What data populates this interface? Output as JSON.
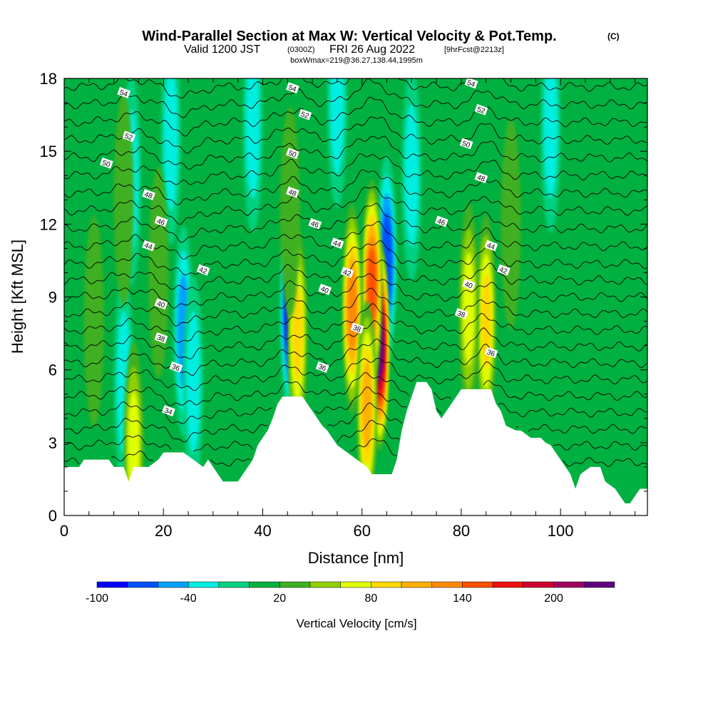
{
  "header": {
    "title_main": "Wind-Parallel Section at Max W: Vertical Velocity & Pot.Temp.",
    "title_mark": "(C)",
    "valid_prefix": "Valid 1200 JST",
    "valid_utc": "(0300Z)",
    "valid_date": "FRI 26 Aug 2022",
    "valid_fcst": "[9hrFcst@2213z]",
    "box_info": "boxWmax=219@36.27,138.44,1995m"
  },
  "colors": {
    "terrain": "#ffffff",
    "contour": "#000000",
    "frame": "#000000"
  },
  "chart_data": {
    "type": "heatmap",
    "xlabel": "Distance [nm]",
    "ylabel": "Height [Kft MSL]",
    "xlim": [
      0,
      117.5
    ],
    "ylim": [
      0,
      18
    ],
    "x_ticks": [
      0,
      20,
      40,
      60,
      80,
      100
    ],
    "y_ticks": [
      0,
      3,
      6,
      9,
      12,
      15,
      18
    ],
    "colorbar": {
      "title": "Vertical Velocity [cm/s]",
      "levels": [
        -100,
        -80,
        -60,
        -40,
        -20,
        0,
        20,
        40,
        60,
        80,
        100,
        120,
        140,
        160,
        180,
        200,
        220,
        240
      ],
      "labeled_ticks": [
        -100,
        -40,
        20,
        80,
        140,
        200
      ],
      "colors": [
        "#0000ff",
        "#0050ff",
        "#00a0ff",
        "#00eee0",
        "#00d080",
        "#00b040",
        "#40b020",
        "#90d000",
        "#e0ff00",
        "#ffd800",
        "#ffb000",
        "#ff8800",
        "#ff5000",
        "#ee1010",
        "#cc0030",
        "#a00060",
        "#600080"
      ]
    },
    "background_w": 10,
    "terrain": [
      [
        0,
        2.0
      ],
      [
        3,
        2.0
      ],
      [
        4,
        2.3
      ],
      [
        9,
        2.3
      ],
      [
        10,
        2.0
      ],
      [
        12,
        2.0
      ],
      [
        13,
        1.4
      ],
      [
        14,
        2.0
      ],
      [
        17,
        2.0
      ],
      [
        19,
        2.3
      ],
      [
        20,
        2.6
      ],
      [
        24,
        2.6
      ],
      [
        26,
        2.3
      ],
      [
        28,
        2.0
      ],
      [
        29,
        2.3
      ],
      [
        31,
        1.7
      ],
      [
        32,
        1.4
      ],
      [
        35,
        1.4
      ],
      [
        36,
        1.7
      ],
      [
        37,
        2.0
      ],
      [
        38,
        2.3
      ],
      [
        39,
        2.9
      ],
      [
        40,
        3.2
      ],
      [
        41,
        3.5
      ],
      [
        42,
        4.0
      ],
      [
        43,
        4.6
      ],
      [
        44,
        4.9
      ],
      [
        48,
        4.9
      ],
      [
        49,
        4.6
      ],
      [
        50,
        4.3
      ],
      [
        51,
        4.0
      ],
      [
        52,
        3.7
      ],
      [
        53,
        3.5
      ],
      [
        54,
        3.2
      ],
      [
        55,
        2.9
      ],
      [
        57,
        2.6
      ],
      [
        59,
        2.3
      ],
      [
        61,
        2.0
      ],
      [
        62,
        1.7
      ],
      [
        66,
        1.7
      ],
      [
        67,
        2.3
      ],
      [
        68,
        3.5
      ],
      [
        69,
        4.3
      ],
      [
        71,
        5.5
      ],
      [
        73,
        5.5
      ],
      [
        74,
        5.2
      ],
      [
        75,
        4.3
      ],
      [
        76,
        4.0
      ],
      [
        77,
        4.3
      ],
      [
        78,
        4.6
      ],
      [
        79,
        4.9
      ],
      [
        80,
        5.2
      ],
      [
        83,
        5.2
      ],
      [
        84,
        5.2
      ],
      [
        86,
        5.2
      ],
      [
        87,
        4.6
      ],
      [
        88,
        4.3
      ],
      [
        89,
        3.7
      ],
      [
        91,
        3.5
      ],
      [
        92,
        3.5
      ],
      [
        94,
        3.2
      ],
      [
        96,
        3.2
      ],
      [
        97,
        3.0
      ],
      [
        98,
        2.9
      ],
      [
        99,
        2.6
      ],
      [
        100,
        2.3
      ],
      [
        101,
        2.0
      ],
      [
        102,
        1.7
      ],
      [
        103,
        1.1
      ],
      [
        104,
        1.7
      ],
      [
        106,
        2.0
      ],
      [
        108,
        2.0
      ],
      [
        109,
        1.4
      ],
      [
        111,
        1.1
      ],
      [
        112,
        0.8
      ],
      [
        113,
        0.5
      ],
      [
        114,
        0.5
      ],
      [
        115,
        0.8
      ],
      [
        116,
        1.1
      ],
      [
        117.5,
        1.1
      ]
    ],
    "updrafts": [
      {
        "x": 63.5,
        "y": 7.0,
        "w": 220
      },
      {
        "x": 62.0,
        "y": 9.5,
        "w": 140
      },
      {
        "x": 58.0,
        "y": 8.5,
        "w": 120
      },
      {
        "x": 61.0,
        "y": 4.5,
        "w": 100
      },
      {
        "x": 47.0,
        "y": 7.5,
        "w": 80
      },
      {
        "x": 85.0,
        "y": 8.0,
        "w": 80
      },
      {
        "x": 81.5,
        "y": 8.5,
        "w": 60
      },
      {
        "x": 14.0,
        "y": 2.8,
        "w": 70
      },
      {
        "x": 19.0,
        "y": 10.0,
        "w": 30
      },
      {
        "x": 12.0,
        "y": 13.0,
        "w": 30
      },
      {
        "x": 45.5,
        "y": 12.5,
        "w": 30
      },
      {
        "x": 90.0,
        "y": 12.0,
        "w": 30
      },
      {
        "x": 6.0,
        "y": 8.0,
        "w": 30
      }
    ],
    "downdrafts": [
      {
        "x": 45.5,
        "y": 8.5,
        "w": -90
      },
      {
        "x": 65.0,
        "y": 10.5,
        "w": -60
      },
      {
        "x": 24.0,
        "y": 7.6,
        "w": -40
      },
      {
        "x": 13.5,
        "y": 13.8,
        "w": -30
      },
      {
        "x": 21.5,
        "y": 15.5,
        "w": -30
      },
      {
        "x": 38.0,
        "y": 16.0,
        "w": -30
      },
      {
        "x": 55.0,
        "y": 17.0,
        "w": -30
      },
      {
        "x": 70.0,
        "y": 14.0,
        "w": -30
      },
      {
        "x": 98.0,
        "y": 16.0,
        "w": -30
      },
      {
        "x": 26.0,
        "y": 5.5,
        "w": -30
      },
      {
        "x": 12.0,
        "y": 5.5,
        "w": -30
      }
    ],
    "pot_temp_contours": {
      "levels": [
        32,
        33,
        34,
        35,
        36,
        37,
        38,
        39,
        40,
        41,
        42,
        43,
        44,
        45,
        46,
        47,
        48,
        49,
        50,
        51,
        52,
        53,
        54,
        55,
        56
      ],
      "labeled": [
        {
          "v": "54",
          "x": 12,
          "y": 17.4
        },
        {
          "v": "52",
          "x": 13,
          "y": 15.6
        },
        {
          "v": "50",
          "x": 8.5,
          "y": 14.5
        },
        {
          "v": "48",
          "x": 17,
          "y": 13.2
        },
        {
          "v": "46",
          "x": 19.5,
          "y": 12.1
        },
        {
          "v": "44",
          "x": 17,
          "y": 11.1
        },
        {
          "v": "42",
          "x": 28,
          "y": 10.1
        },
        {
          "v": "40",
          "x": 19.5,
          "y": 8.7
        },
        {
          "v": "38",
          "x": 19.5,
          "y": 7.3
        },
        {
          "v": "36",
          "x": 22.5,
          "y": 6.1
        },
        {
          "v": "34",
          "x": 21,
          "y": 4.3
        },
        {
          "v": "54",
          "x": 46,
          "y": 17.6
        },
        {
          "v": "52",
          "x": 48.5,
          "y": 16.5
        },
        {
          "v": "50",
          "x": 46,
          "y": 14.9
        },
        {
          "v": "48",
          "x": 46,
          "y": 13.3
        },
        {
          "v": "46",
          "x": 50.5,
          "y": 12.0
        },
        {
          "v": "44",
          "x": 55,
          "y": 11.2
        },
        {
          "v": "42",
          "x": 57,
          "y": 10.0
        },
        {
          "v": "40",
          "x": 52.5,
          "y": 9.3
        },
        {
          "v": "38",
          "x": 59,
          "y": 7.7
        },
        {
          "v": "36",
          "x": 52,
          "y": 6.1
        },
        {
          "v": "54",
          "x": 82,
          "y": 17.8
        },
        {
          "v": "52",
          "x": 84,
          "y": 16.7
        },
        {
          "v": "50",
          "x": 81,
          "y": 15.3
        },
        {
          "v": "48",
          "x": 84,
          "y": 13.9
        },
        {
          "v": "46",
          "x": 76,
          "y": 12.1
        },
        {
          "v": "44",
          "x": 86,
          "y": 11.1
        },
        {
          "v": "42",
          "x": 88.5,
          "y": 10.1
        },
        {
          "v": "40",
          "x": 81.5,
          "y": 9.5
        },
        {
          "v": "38",
          "x": 80,
          "y": 8.3
        },
        {
          "v": "36",
          "x": 86,
          "y": 6.7
        }
      ]
    }
  }
}
